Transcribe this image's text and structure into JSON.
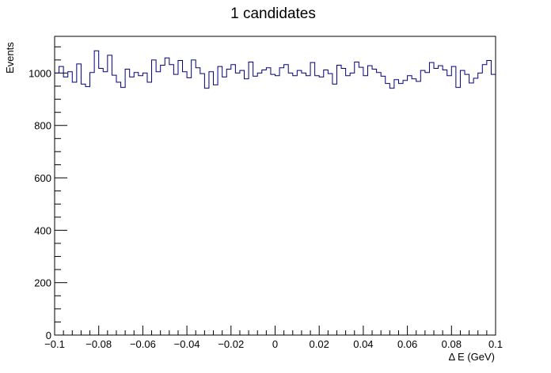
{
  "chart_data": {
    "type": "line",
    "title": "1 candidates",
    "xlabel": "Δ E (GeV)",
    "ylabel": "Events",
    "xlim": [
      -0.1,
      0.1
    ],
    "ylim": [
      0,
      1140
    ],
    "x_ticks": [
      -0.1,
      -0.08,
      -0.06,
      -0.04,
      -0.02,
      0,
      0.02,
      0.04,
      0.06,
      0.08,
      0.1
    ],
    "x_tick_labels": [
      "−0.1",
      "−0.08",
      "−0.06",
      "−0.04",
      "−0.02",
      "0",
      "0.02",
      "0.04",
      "0.06",
      "0.08",
      "0.1"
    ],
    "y_ticks": [
      0,
      200,
      400,
      600,
      800,
      1000
    ],
    "y_tick_labels": [
      "0",
      "200",
      "400",
      "600",
      "800",
      "1000"
    ],
    "grid": false,
    "line_color": "#000080",
    "series": [
      {
        "values": [
          1000,
          1025,
          985,
          1005,
          965,
          1035,
          958,
          948,
          1002,
          1085,
          1018,
          1005,
          1068,
          992,
          965,
          945,
          1015,
          985,
          1002,
          990,
          1000,
          965,
          1050,
          1005,
          1030,
          1058,
          1032,
          995,
          1048,
          1005,
          982,
          1050,
          1020,
          998,
          942,
          1005,
          955,
          1025,
          985,
          1015,
          1032,
          1000,
          1010,
          978,
          1042,
          988,
          1000,
          1012,
          1020,
          995,
          990,
          1020,
          1032,
          1000,
          990,
          1010,
          1000,
          990,
          1040,
          990,
          985,
          1012,
          998,
          958,
          1030,
          1018,
          990,
          1000,
          1042,
          1022,
          990,
          1028,
          1015,
          1002,
          988,
          960,
          942,
          975,
          960,
          972,
          990,
          978,
          968,
          1010,
          1002,
          1040,
          1018,
          1028,
          1012,
          990,
          1025,
          945,
          1010,
          995,
          962,
          980,
          1000,
          1032,
          1048,
          995
        ]
      }
    ]
  }
}
